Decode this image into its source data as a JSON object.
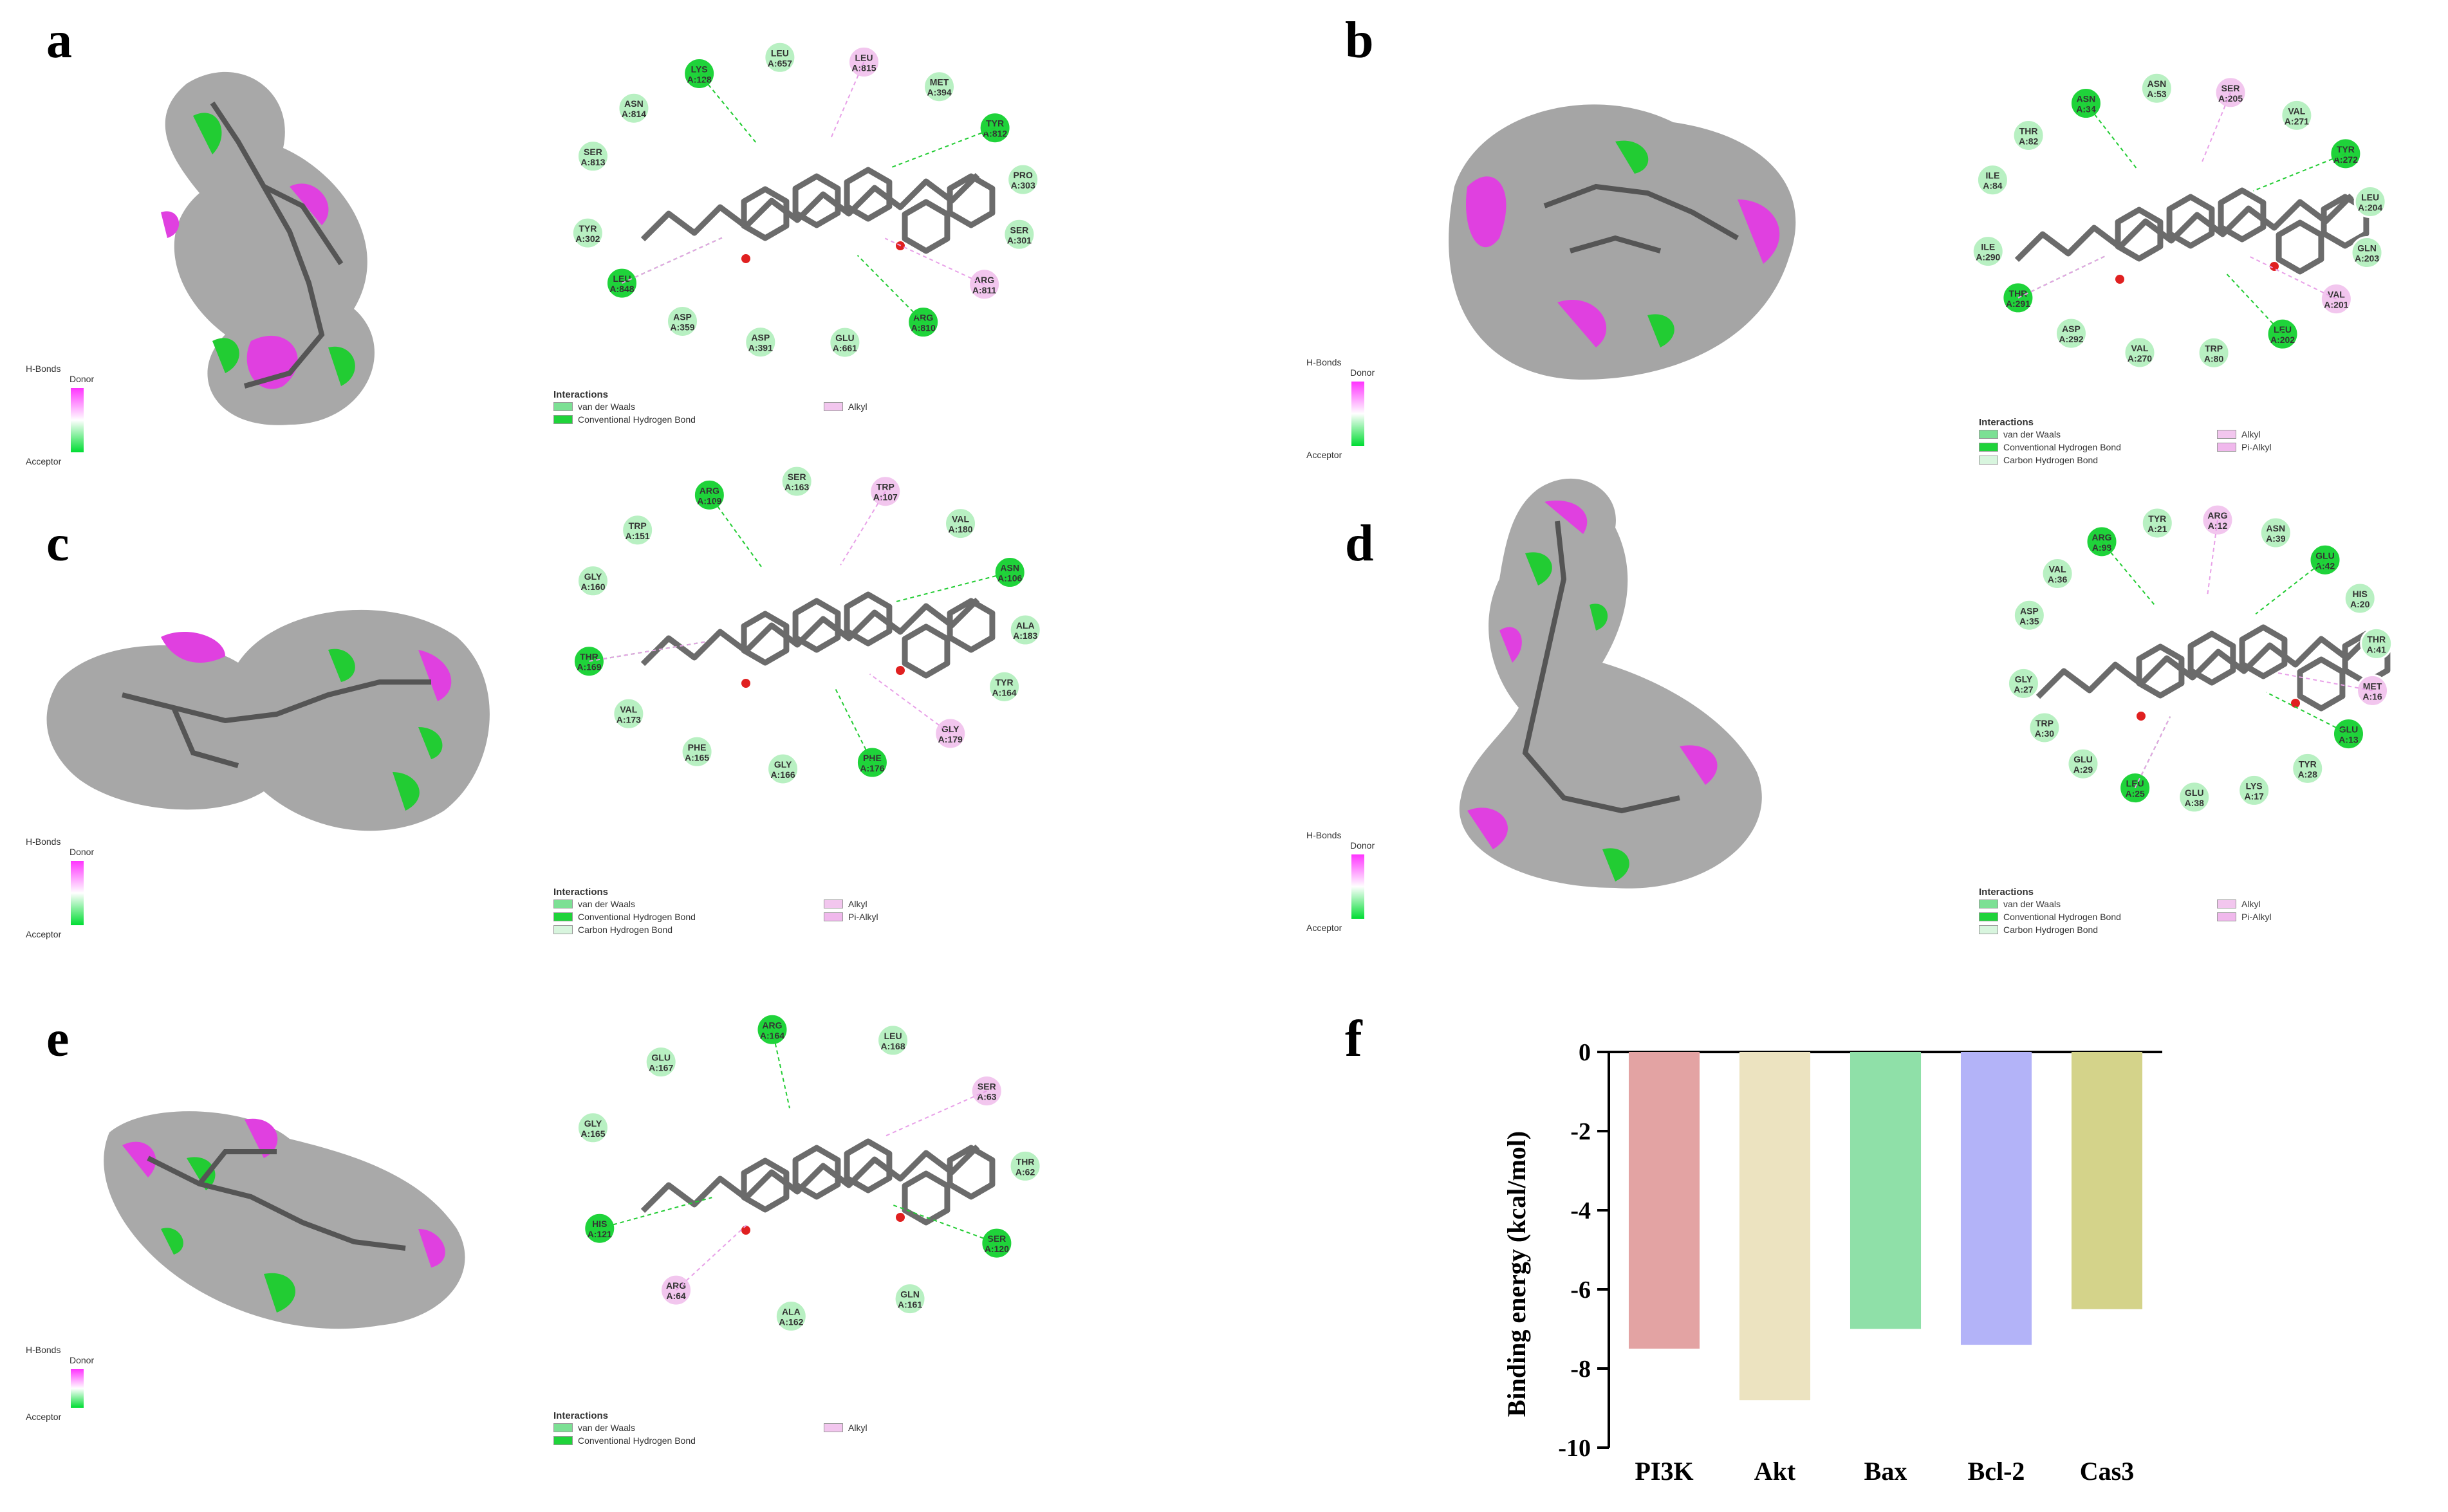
{
  "panels": {
    "a": {
      "letter": "a",
      "residues": [
        "SER A:813",
        "ASN A:814",
        "LYS A:128",
        "LEU A:657",
        "LEU A:815",
        "MET A:394",
        "TYR A:812",
        "PRO A:303",
        "SER A:301",
        "ARG A:811",
        "ARG A:810",
        "GLU A:661",
        "ASP A:391",
        "ASP A:359",
        "LEU A:848",
        "TYR A:302"
      ],
      "legend": [
        "van der Waals",
        "Conventional Hydrogen Bond",
        "Alkyl"
      ]
    },
    "b": {
      "letter": "b",
      "residues": [
        "ILE A:84",
        "THR A:82",
        "ASN A:34",
        "ASN A:53",
        "SER A:205",
        "VAL A:271",
        "TYR A:272",
        "LEU A:204",
        "GLN A:203",
        "VAL A:201",
        "LEU A:202",
        "TRP A:80",
        "VAL A:270",
        "ASP A:292",
        "THR A:291",
        "ILE A:290"
      ],
      "legend": [
        "van der Waals",
        "Conventional Hydrogen Bond",
        "Carbon Hydrogen Bond",
        "Alkyl",
        "Pi-Alkyl"
      ]
    },
    "c": {
      "letter": "c",
      "residues": [
        "GLY A:160",
        "TRP A:151",
        "ARG A:109",
        "SER A:163",
        "TRP A:107",
        "VAL A:180",
        "ASN A:106",
        "ALA A:183",
        "TYR A:164",
        "GLY A:179",
        "PHE A:176",
        "GLY A:166",
        "PHE A:165",
        "VAL A:173",
        "THR A:169"
      ],
      "legend": [
        "van der Waals",
        "Conventional Hydrogen Bond",
        "Carbon Hydrogen Bond",
        "Alkyl",
        "Pi-Alkyl"
      ]
    },
    "d": {
      "letter": "d",
      "residues": [
        "ASP A:35",
        "VAL A:36",
        "ARG A:98",
        "TYR A:21",
        "ARG A:12",
        "ASN A:39",
        "GLU A:42",
        "HIS A:20",
        "THR A:41",
        "MET A:16",
        "GLU A:13",
        "TYR A:28",
        "LYS A:17",
        "GLU A:38",
        "LEU A:25",
        "GLU A:29",
        "TRP A:30",
        "GLY A:27"
      ],
      "legend": [
        "van der Waals",
        "Conventional Hydrogen Bond",
        "Carbon Hydrogen Bond",
        "Alkyl",
        "Pi-Alkyl"
      ]
    },
    "e": {
      "letter": "e",
      "residues": [
        "GLY A:165",
        "GLU A:167",
        "ARG A:164",
        "LEU A:168",
        "SER A:63",
        "THR A:62",
        "SER A:120",
        "GLN A:161",
        "ALA A:162",
        "ARG A:64",
        "HIS A:121"
      ],
      "legend": [
        "van der Waals",
        "Conventional Hydrogen Bond",
        "Alkyl"
      ]
    },
    "f": {
      "letter": "f"
    }
  },
  "legend_title": "Interactions",
  "hbond_title": "H-Bonds",
  "hbond_donor": "Donor",
  "hbond_acceptor": "Acceptor",
  "chart_data": {
    "type": "bar",
    "categories": [
      "PI3K",
      "Akt",
      "Bax",
      "Bcl-2",
      "Cas3"
    ],
    "values": [
      -7.5,
      -8.8,
      -7.0,
      -7.4,
      -6.5
    ],
    "colors": [
      "#e3a3a3",
      "#ece3c0",
      "#8fe0a8",
      "#b3b3f8",
      "#d4d38a"
    ],
    "ylabel": "Binding energy (kcal/mol)",
    "ylim": [
      -10,
      0
    ],
    "yticks": [
      0,
      -2,
      -4,
      -6,
      -8,
      -10
    ],
    "grid": false
  }
}
